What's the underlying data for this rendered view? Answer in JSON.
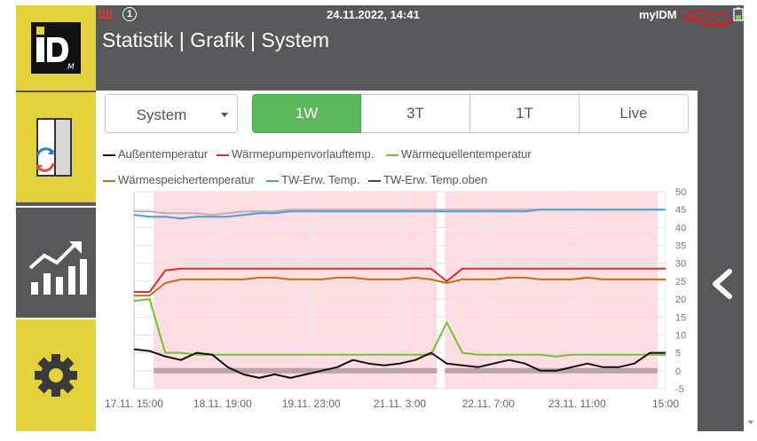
{
  "header": {
    "datetime": "24.11.2022, 14:41",
    "brand_text": "myIDM",
    "notification_count": "1",
    "title": "Statistik | Grafik | System"
  },
  "sidebar": {
    "items": [
      {
        "name": "logo",
        "icon": "idm-logo"
      },
      {
        "name": "system-exchange",
        "icon": "exchange-icon"
      },
      {
        "name": "statistics",
        "icon": "chart-icon"
      },
      {
        "name": "settings",
        "icon": "gear-icon"
      }
    ]
  },
  "controls": {
    "select_value": "System",
    "tabs": [
      {
        "label": "1W",
        "active": true
      },
      {
        "label": "3T",
        "active": false
      },
      {
        "label": "1T",
        "active": false
      },
      {
        "label": "Live",
        "active": false
      }
    ]
  },
  "colors": {
    "accent_yellow": "#e4d23c",
    "dark_gray": "#58585a",
    "active_tab": "#5cb85c",
    "shade": "#ffdde2"
  },
  "chart_data": {
    "type": "line",
    "ylim": [
      -5,
      50
    ],
    "yticks": [
      "50",
      "45",
      "40",
      "35",
      "30",
      "25",
      "20",
      "15",
      "10",
      "5",
      "0",
      "-5"
    ],
    "xticks": [
      "17.11. 15:00",
      "18.11. 19:00",
      "19.11. 23:00",
      "21.11. 3:00",
      "22.11. 7:00",
      "23.11. 11:00",
      "15:00"
    ],
    "shaded_ranges": [
      [
        0.037,
        0.57
      ],
      [
        0.585,
        0.985
      ]
    ],
    "series": [
      {
        "name": "Außentemperatur",
        "color": "#111111",
        "values": [
          6,
          5.5,
          4,
          3,
          5,
          4.5,
          1,
          -1,
          -2,
          -1,
          -2,
          -1,
          0,
          1,
          3,
          2,
          1.5,
          2,
          3,
          5,
          2,
          1.5,
          1,
          2,
          3,
          2,
          0,
          0,
          1,
          2,
          1,
          1,
          2,
          5,
          5
        ]
      },
      {
        "name": "Wärmepumpenvorlauftemp.",
        "color": "#d93025",
        "values": [
          22,
          22,
          28,
          28.5,
          28.5,
          28.5,
          28.5,
          28.5,
          28.5,
          28.5,
          28.5,
          28.5,
          28.5,
          28.5,
          28.5,
          28.5,
          28.5,
          28.5,
          28.5,
          28.5,
          25,
          28.5,
          28.5,
          28.5,
          28.5,
          28.5,
          28.5,
          28.5,
          28.5,
          28.5,
          28.5,
          28.5,
          28.5,
          28.5,
          28.5
        ]
      },
      {
        "name": "Wärmequellentemperatur",
        "color": "#6cc534",
        "values": [
          19.5,
          20,
          5,
          5,
          4.5,
          4.5,
          4.5,
          4.5,
          4.5,
          4.5,
          4.5,
          4.5,
          4.5,
          4.5,
          4.5,
          4.5,
          4.5,
          4.5,
          4.5,
          4.5,
          13.5,
          5,
          4.5,
          4.5,
          4.5,
          4.5,
          4.5,
          4,
          4.5,
          4.5,
          4.5,
          4.5,
          4.5,
          4.5,
          4.5
        ]
      },
      {
        "name": "Wärmespeichertemperatur",
        "color": "#c96d17",
        "values": [
          21,
          21,
          24.5,
          25.5,
          25.5,
          25.5,
          25.5,
          25.5,
          26,
          26,
          25.5,
          25.5,
          25.5,
          26,
          26,
          25.5,
          25.5,
          25.5,
          26,
          25.5,
          24.5,
          25.5,
          25.5,
          25.5,
          26,
          26,
          25.5,
          25.5,
          25.5,
          26,
          25.5,
          25.5,
          25.5,
          25.5,
          25.5
        ]
      },
      {
        "name": "TW-Erw. Temp.",
        "color": "#4a9ee6",
        "values": [
          43.5,
          43,
          43,
          42.5,
          43,
          43,
          43,
          43.5,
          44,
          44,
          44.5,
          44.5,
          44.5,
          44.5,
          44.5,
          44.5,
          44.5,
          44.5,
          44.5,
          44.5,
          44.5,
          44.5,
          44.5,
          44.5,
          44.5,
          44.5,
          45,
          45,
          45,
          45,
          45,
          45,
          45,
          45,
          45
        ]
      },
      {
        "name": "TW-Erw. Temp.oben",
        "color": "#444444",
        "values": [
          44.5,
          44.5,
          44,
          44,
          44,
          43.5,
          44,
          44.5,
          44.5,
          44.5,
          45,
          45,
          45,
          45,
          45,
          45,
          45,
          45,
          45,
          45,
          45,
          45,
          45,
          45,
          45,
          45,
          45,
          45,
          45,
          45,
          45,
          45,
          45,
          45,
          45
        ]
      }
    ]
  }
}
